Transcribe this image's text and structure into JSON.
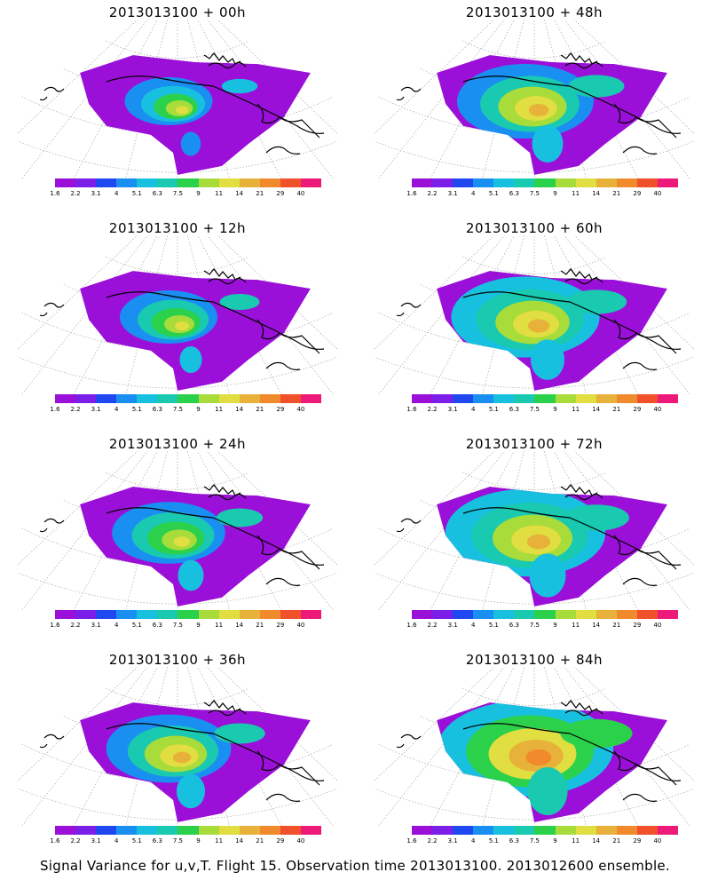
{
  "panels": [
    {
      "title": "2013013100 + 00h",
      "intensity": 0.45,
      "col": 0,
      "row": 0
    },
    {
      "title": "2013013100 + 48h",
      "intensity": 0.7,
      "col": 1,
      "row": 0
    },
    {
      "title": "2013013100 + 12h",
      "intensity": 0.5,
      "col": 0,
      "row": 1
    },
    {
      "title": "2013013100 + 60h",
      "intensity": 0.76,
      "col": 1,
      "row": 1
    },
    {
      "title": "2013013100 + 24h",
      "intensity": 0.58,
      "col": 0,
      "row": 2
    },
    {
      "title": "2013013100 + 72h",
      "intensity": 0.82,
      "col": 1,
      "row": 2
    },
    {
      "title": "2013013100 + 36h",
      "intensity": 0.64,
      "col": 0,
      "row": 3
    },
    {
      "title": "2013013100 + 84h",
      "intensity": 0.9,
      "col": 1,
      "row": 3
    }
  ],
  "colorbar": {
    "ticks": [
      "1.6",
      "2.2",
      "3.1",
      "4",
      "5.1",
      "6.3",
      "7.5",
      "9",
      "11",
      "14",
      "21",
      "29",
      "40"
    ],
    "colors": [
      "#9b10d8",
      "#7b1ee8",
      "#2048f0",
      "#1a8ff2",
      "#18c0e0",
      "#19c9b0",
      "#2bd14a",
      "#a8dc3a",
      "#e0de40",
      "#e8b23a",
      "#f08a2c",
      "#f0502a",
      "#ee1a7a"
    ]
  },
  "footer": "Signal Variance for u,v,T. Flight 15. Observation time 2013013100. 2013012600 ensemble."
}
